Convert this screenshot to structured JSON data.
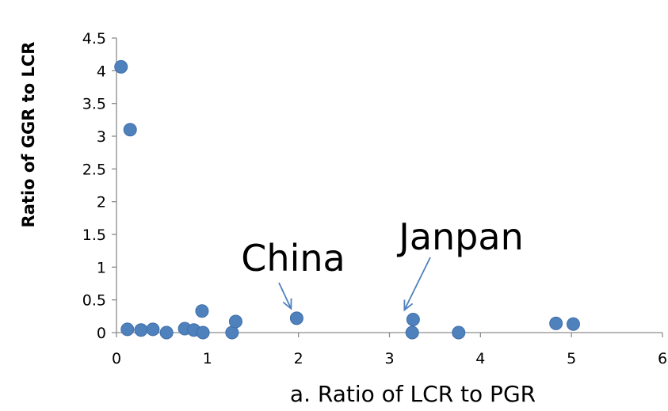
{
  "chart_data": {
    "type": "scatter",
    "title": "",
    "xlabel": "a. Ratio of LCR to PGR",
    "ylabel": "Ratio of GGR to LCR",
    "xlim": [
      0,
      6
    ],
    "ylim": [
      0,
      4.5
    ],
    "x_ticks": [
      "0",
      "1",
      "2",
      "3",
      "4",
      "5",
      "6"
    ],
    "y_ticks": [
      "0",
      "0.5",
      "1",
      "1.5",
      "2",
      "2.5",
      "3",
      "3.5",
      "4",
      "4.5"
    ],
    "grid": false,
    "legend": "none",
    "marker_color": "#4f81bd",
    "series": [
      {
        "points": [
          {
            "x": 0.05,
            "y": 4.06
          },
          {
            "x": 0.15,
            "y": 3.1
          },
          {
            "x": 0.12,
            "y": 0.05
          },
          {
            "x": 0.27,
            "y": 0.04
          },
          {
            "x": 0.4,
            "y": 0.05
          },
          {
            "x": 0.55,
            "y": 0.0
          },
          {
            "x": 0.75,
            "y": 0.06
          },
          {
            "x": 0.85,
            "y": 0.04
          },
          {
            "x": 0.94,
            "y": 0.33
          },
          {
            "x": 0.95,
            "y": 0.0
          },
          {
            "x": 1.27,
            "y": 0.0
          },
          {
            "x": 1.31,
            "y": 0.17
          },
          {
            "x": 1.98,
            "y": 0.22
          },
          {
            "x": 3.26,
            "y": 0.2
          },
          {
            "x": 3.25,
            "y": 0.0
          },
          {
            "x": 3.76,
            "y": 0.0
          },
          {
            "x": 4.83,
            "y": 0.14
          },
          {
            "x": 5.02,
            "y": 0.13
          }
        ]
      }
    ],
    "annotations": [
      {
        "text": "China",
        "point": {
          "x": 1.98,
          "y": 0.22
        }
      },
      {
        "text": "Janpan",
        "point": {
          "x": 3.26,
          "y": 0.2
        }
      }
    ]
  }
}
